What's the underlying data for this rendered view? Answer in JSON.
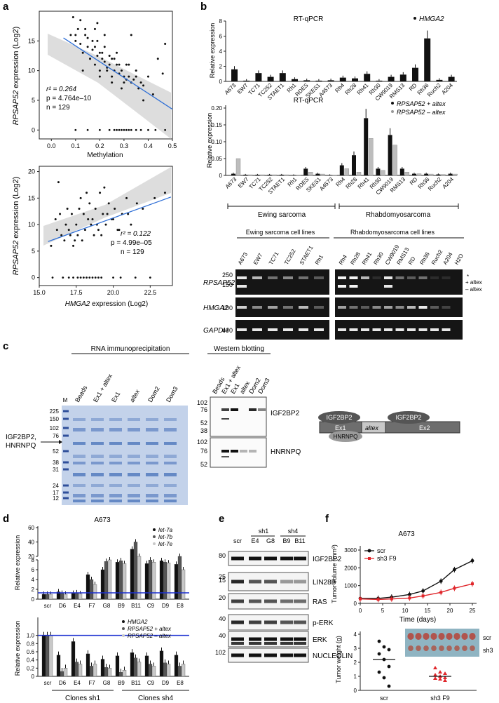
{
  "panel_labels": {
    "a": "a",
    "b": "b",
    "c": "c",
    "d": "d",
    "e": "e",
    "f": "f"
  },
  "panel_a": {
    "top": {
      "ylabel_italic": "RPSAP52",
      "ylabel_rest": " expression (Log2)",
      "xlabel": "Methylation",
      "xticks": [
        "0.0",
        "0.1",
        "0.2",
        "0.3",
        "0.4",
        "0.5"
      ],
      "yticks": [
        "0",
        "5",
        "10",
        "15"
      ],
      "stat_r2": "r² = 0.264",
      "stat_p": "p = 4.764e–10",
      "stat_n": "n = 129"
    },
    "bottom": {
      "ylabel_italic": "RPSAP52",
      "ylabel_rest": " expression (Log2)",
      "xlabel_italic": "HMGA2",
      "xlabel_rest": " expression (Log2)",
      "xticks": [
        "15.0",
        "17.5",
        "20.0",
        "22.5"
      ],
      "yticks": [
        "0",
        "5",
        "10",
        "15",
        "20"
      ],
      "stat_r2": "r² = 0.122",
      "stat_p": "p = 4.99e–05",
      "stat_n": "n = 129"
    }
  },
  "panel_b": {
    "top_title": "RT-qPCR",
    "top_legend": "HMGA2",
    "ylabel": "Relative expression",
    "top_yticks": [
      "0",
      "2",
      "4",
      "6",
      "8"
    ],
    "cell_lines": [
      "A673",
      "EW7",
      "TC71",
      "TC252",
      "STAET1",
      "Rh1",
      "RDES",
      "SKES1",
      "A4573",
      "Rh4",
      "Rh28",
      "Rh41",
      "Rh30",
      "CW9019",
      "RMS13",
      "RD",
      "Rh36",
      "Ruch2",
      "A204"
    ],
    "mid_title": "RT-qPCR",
    "mid_legend_plus": "RPSAP52 + altex",
    "mid_legend_minus": "RPSAP52 – altex",
    "mid_yticks": [
      "0",
      "0.05",
      "0.10",
      "0.15",
      "0.20"
    ],
    "group_ewing": "Ewing sarcoma",
    "group_rhabdo": "Rhabdomyosarcoma",
    "gel_header_ewing": "Ewing sarcoma cell lines",
    "gel_header_rhabdo": "Rhabdomyosarcoma cell lines",
    "gel_lanes_left": [
      "A673",
      "EW7",
      "TC71",
      "TC252",
      "STAET1",
      "Rh1"
    ],
    "gel_lanes_right": [
      "Rh4",
      "Rh28",
      "Rh41",
      "Rh30",
      "CW9019",
      "RMS13",
      "RD",
      "Rh36",
      "Ruch2",
      "A204",
      "H2O"
    ],
    "gel_rows": [
      {
        "name": "RPSAP52",
        "sizes": [
          "250",
          "150"
        ]
      },
      {
        "name": "HMGA2",
        "sizes": [
          "100"
        ]
      },
      {
        "name": "GAPDH",
        "sizes": [
          "400"
        ]
      }
    ],
    "gel_side_plus": "+ altex",
    "gel_side_minus": "– altex",
    "gel_side_star": "*"
  },
  "panel_c": {
    "rip_title": "RNA immunoprecipitation",
    "rip_lanes": [
      "Beads",
      "Ex1 + altex",
      "Ex1",
      "altex",
      "Dom2",
      "Dom3"
    ],
    "marker_label": "M",
    "marker_sizes": [
      "225",
      "150",
      "102",
      "76",
      "52",
      "38",
      "31",
      "24",
      "17",
      "12"
    ],
    "protein_arrow_label_1": "IGF2BP2,",
    "protein_arrow_label_2": "HNRNPQ",
    "wb_title": "Western blotting",
    "wb_lanes": [
      "Beads",
      "Ex1 + altex",
      "Ex1",
      "altex",
      "Dom2",
      "Dom3"
    ],
    "wb_top_sizes": [
      "102",
      "76",
      "52",
      "38"
    ],
    "wb_top_label": "IGF2BP2",
    "wb_bot_sizes": [
      "102",
      "76",
      "52"
    ],
    "wb_bot_label": "HNRNPQ",
    "schematic": {
      "ex1": "Ex1",
      "altex": "altex",
      "ex2": "Ex2",
      "p1": "IGF2BP2",
      "p2": "IGF2BP2",
      "p3": "HNRNPQ"
    }
  },
  "panel_d": {
    "title": "A673",
    "ylabel": "Relative expression",
    "top_legend": [
      "let-7a",
      "let-7b",
      "let-7e"
    ],
    "top_yticks": [
      "0",
      "2",
      "4",
      "6",
      "8",
      "20",
      "40",
      "60"
    ],
    "clones": [
      "scr",
      "D6",
      "E4",
      "F7",
      "G8",
      "B9",
      "B11",
      "C9",
      "D9",
      "E8"
    ],
    "bottom_legend": [
      "HMGA2",
      "RPSAP52 + altex",
      "RPSAP52 – altex"
    ],
    "bottom_yticks": [
      "0",
      "0.2",
      "0.4",
      "0.6",
      "0.8",
      "1.0"
    ],
    "group_sh1": "Clones sh1",
    "group_sh4": "Clones sh4"
  },
  "panel_e": {
    "lanes": [
      "scr",
      "E4",
      "G8",
      "B9",
      "B11"
    ],
    "group_sh1": "sh1",
    "group_sh4": "sh4",
    "blots": [
      {
        "size": "80",
        "label": "IGF2BP2"
      },
      {
        "size": "25",
        "label": "LIN28B"
      },
      {
        "size": "20",
        "label": "RAS"
      },
      {
        "size": "40",
        "label": "p-ERK"
      },
      {
        "size": "40",
        "label": "ERK"
      },
      {
        "size": "102",
        "label": "NUCLEOLIN"
      }
    ],
    "extra_size_15": "15"
  },
  "panel_f": {
    "title": "A673",
    "ylabel_top": "Tumor volume (mm³)",
    "xlabel_top": "Time (days)",
    "top_xticks": [
      "0",
      "5",
      "10",
      "15",
      "20",
      "25"
    ],
    "top_yticks": [
      "0",
      "1000",
      "2000",
      "3000"
    ],
    "legend": [
      "scr",
      "sh3 F9"
    ],
    "ylabel_bottom": "Tumor weight (g)",
    "bottom_yticks": [
      "0",
      "1",
      "2",
      "3",
      "4"
    ],
    "bottom_xcats": [
      "scr",
      "sh3 F9"
    ],
    "photo_labels": [
      "scr",
      "sh3"
    ]
  },
  "colors": {
    "regression": "#2f6fd6",
    "band": "#d9d9d9",
    "red": "#e0262b",
    "gel_bg": "#151515",
    "coomassie": "#5a86c7"
  },
  "chart_data": [
    {
      "type": "scatter",
      "title": "",
      "xlabel": "Methylation",
      "ylabel": "RPSAP52 expression (Log2)",
      "xlim": [
        -0.05,
        0.5
      ],
      "ylim": [
        -1.5,
        20
      ],
      "x": [
        0.08,
        0.1,
        0.12,
        0.13,
        0.14,
        0.15,
        0.16,
        0.17,
        0.18,
        0.18,
        0.19,
        0.2,
        0.2,
        0.21,
        0.22,
        0.22,
        0.23,
        0.24,
        0.25,
        0.25,
        0.26,
        0.27,
        0.28,
        0.29,
        0.3,
        0.31,
        0.32,
        0.33,
        0.34,
        0.35,
        0.36,
        0.37,
        0.38,
        0.4,
        0.42,
        0.44,
        0.46,
        0.09,
        0.11,
        0.14,
        0.17,
        0.19,
        0.21,
        0.24,
        0.28,
        0.3,
        0.33,
        0.15,
        0.2,
        0.26,
        0.22,
        0.18,
        0.12,
        0.27,
        0.31,
        0.35,
        0.23,
        0.16,
        0.29,
        0.1,
        0.47,
        0.13,
        0.38,
        0.19,
        0.25,
        0.32
      ],
      "y": [
        16,
        15,
        14.5,
        13,
        17,
        15.5,
        12,
        13.5,
        14,
        11,
        12.5,
        13,
        10,
        12,
        11.5,
        14,
        10.5,
        11,
        12,
        9,
        10,
        11,
        9.5,
        10,
        9,
        8.5,
        9,
        8,
        8.5,
        10,
        7,
        8,
        7.5,
        9,
        6,
        12,
        9.5,
        19,
        17,
        16,
        15,
        18,
        13,
        12.5,
        11,
        8,
        16,
        14,
        9,
        12,
        16,
        17,
        18.5,
        13,
        11,
        9,
        10,
        12,
        7,
        16,
        14.5,
        10,
        5,
        15,
        8,
        11
      ],
      "zeros_x": [
        0.1,
        0.15,
        0.2,
        0.24,
        0.26,
        0.27,
        0.28,
        0.29,
        0.3,
        0.31,
        0.32,
        0.33,
        0.35,
        0.37,
        0.4,
        0.43,
        0.47
      ],
      "fit": {
        "x": [
          0.05,
          0.5
        ],
        "y": [
          15.5,
          3.5
        ]
      },
      "stats": {
        "r2": 0.264,
        "p": "4.764e-10",
        "n": 129
      }
    },
    {
      "type": "scatter",
      "title": "",
      "xlabel": "HMGA2 expression (Log2)",
      "ylabel": "RPSAP52 expression (Log2)",
      "xlim": [
        15,
        24
      ],
      "ylim": [
        -1.5,
        21
      ],
      "x": [
        15.8,
        16.1,
        16.3,
        16.5,
        16.7,
        16.9,
        17.0,
        17.2,
        17.3,
        17.5,
        17.6,
        17.8,
        17.9,
        18.0,
        18.1,
        18.3,
        18.4,
        18.5,
        18.7,
        18.8,
        19.0,
        19.1,
        19.3,
        19.5,
        19.7,
        19.9,
        20.1,
        20.3,
        20.6,
        20.9,
        21.2,
        21.6,
        22.0,
        16.2,
        16.8,
        17.4,
        18.2,
        18.6,
        19.2,
        19.6,
        20.0,
        20.4,
        16.4,
        17.1,
        17.7,
        18.9,
        19.4,
        21.0,
        22.8,
        23.5
      ],
      "y": [
        6,
        11,
        18,
        8,
        7,
        13,
        9,
        12,
        6,
        10,
        8,
        15,
        7,
        12,
        9,
        11,
        14,
        10,
        8,
        13,
        9,
        16,
        12,
        10,
        14,
        11,
        13,
        9,
        12,
        15,
        10,
        14,
        13,
        9,
        10,
        7,
        16,
        11,
        8,
        12,
        11,
        9,
        12,
        8,
        13,
        10,
        17,
        12,
        15,
        16
      ],
      "zeros_x": [
        15.9,
        16.6,
        17.0,
        17.3,
        17.6,
        17.8,
        18.0,
        18.2,
        18.4,
        18.6,
        18.8,
        19.0,
        19.2,
        20.0,
        20.5,
        21.5,
        22.5
      ],
      "fit": {
        "x": [
          15.6,
          23.9
        ],
        "y": [
          6.8,
          15.2
        ]
      },
      "stats": {
        "r2": 0.122,
        "p": "4.99e-05",
        "n": 129
      }
    },
    {
      "type": "bar",
      "title": "RT-qPCR",
      "ylabel": "Relative expression",
      "categories": [
        "A673",
        "EW7",
        "TC71",
        "TC252",
        "STAET1",
        "Rh1",
        "RDES",
        "SKES1",
        "A4573",
        "Rh4",
        "Rh28",
        "Rh41",
        "Rh30",
        "CW9019",
        "RMS13",
        "RD",
        "Rh36",
        "Ruch2",
        "A204"
      ],
      "series": [
        {
          "name": "HMGA2",
          "values": [
            1.6,
            0.1,
            1.1,
            0.6,
            1.1,
            0.3,
            0.15,
            0.1,
            0.15,
            0.5,
            0.4,
            1.0,
            0.1,
            0.6,
            0.9,
            1.8,
            5.7,
            0.2,
            0.6
          ]
        }
      ],
      "ylim": [
        0,
        8
      ]
    },
    {
      "type": "bar",
      "title": "RT-qPCR",
      "ylabel": "Relative expression",
      "categories": [
        "A673",
        "EW7",
        "TC71",
        "TC252",
        "STAET1",
        "Rh1",
        "RDES",
        "SKES1",
        "A4573",
        "Rh4",
        "Rh28",
        "Rh41",
        "Rh30",
        "CW9019",
        "RMS13",
        "RD",
        "Rh36",
        "Ruch2",
        "A204"
      ],
      "series": [
        {
          "name": "RPSAP52 + altex",
          "values": [
            0.005,
            0.002,
            0.002,
            0.002,
            0.002,
            0.001,
            0.02,
            0.005,
            0.001,
            0.03,
            0.06,
            0.17,
            0.02,
            0.12,
            0.02,
            0.005,
            0.005,
            0.003,
            0.005
          ]
        },
        {
          "name": "RPSAP52 – altex",
          "values": [
            0.05,
            0.002,
            0.002,
            0.002,
            0.002,
            0.001,
            0.01,
            0.004,
            0.001,
            0.02,
            0.01,
            0.11,
            0.015,
            0.09,
            0.01,
            0.005,
            0.004,
            0.003,
            0.004
          ]
        }
      ],
      "ylim": [
        0,
        0.2
      ]
    },
    {
      "type": "bar",
      "title": "A673",
      "ylabel": "Relative expression",
      "categories": [
        "scr",
        "D6",
        "E4",
        "F7",
        "G8",
        "B9",
        "B11",
        "C9",
        "D9",
        "E8"
      ],
      "series": [
        {
          "name": "let-7a",
          "values": [
            1,
            1.5,
            1.2,
            5,
            6,
            12,
            30,
            10,
            14,
            9
          ]
        },
        {
          "name": "let-7b",
          "values": [
            1,
            1.2,
            1.3,
            4,
            13,
            14,
            40,
            15,
            12,
            20
          ]
        },
        {
          "name": "let-7e",
          "values": [
            1,
            1.0,
            1.1,
            3,
            8,
            10,
            20,
            12,
            11,
            6
          ]
        }
      ]
    },
    {
      "type": "bar",
      "title": "",
      "ylabel": "Relative expression",
      "categories": [
        "scr",
        "D6",
        "E4",
        "F7",
        "G8",
        "B9",
        "B11",
        "C9",
        "D9",
        "E8"
      ],
      "series": [
        {
          "name": "HMGA2",
          "values": [
            1,
            0.52,
            0.85,
            0.55,
            0.42,
            0.5,
            0.58,
            0.5,
            0.62,
            0.52
          ]
        },
        {
          "name": "RPSAP52 + altex",
          "values": [
            1,
            0.12,
            0.35,
            0.25,
            0.22,
            0.1,
            0.45,
            0.3,
            0.33,
            0.25
          ]
        },
        {
          "name": "RPSAP52 – altex",
          "values": [
            1,
            0.2,
            0.3,
            0.3,
            0.2,
            0.15,
            0.35,
            0.25,
            0.3,
            0.3
          ]
        }
      ],
      "ylim": [
        0,
        1.2
      ]
    },
    {
      "type": "line",
      "title": "A673",
      "xlabel": "Time (days)",
      "ylabel": "Tumor volume (mm³)",
      "x": [
        0,
        4,
        7,
        11,
        14,
        18,
        21,
        25
      ],
      "series": [
        {
          "name": "scr",
          "values": [
            280,
            280,
            350,
            500,
            700,
            1250,
            1900,
            2400
          ]
        },
        {
          "name": "sh3 F9",
          "values": [
            250,
            220,
            250,
            300,
            420,
            620,
            850,
            1100
          ]
        }
      ],
      "xlim": [
        0,
        25
      ],
      "ylim": [
        0,
        3000
      ]
    },
    {
      "type": "scatter",
      "title": "",
      "ylabel": "Tumor weight (g)",
      "categories": [
        "scr",
        "sh3 F9"
      ],
      "series": [
        {
          "name": "scr",
          "values": [
            3.5,
            3.1,
            2.9,
            2.6,
            2.2,
            1.7,
            1.3,
            0.9,
            0.3
          ],
          "median": 2.2
        },
        {
          "name": "sh3 F9",
          "values": [
            1.6,
            1.3,
            1.2,
            1.1,
            1.0,
            0.9,
            0.85,
            0.8,
            0.7
          ],
          "median": 1.0
        }
      ],
      "ylim": [
        0,
        4
      ]
    }
  ]
}
